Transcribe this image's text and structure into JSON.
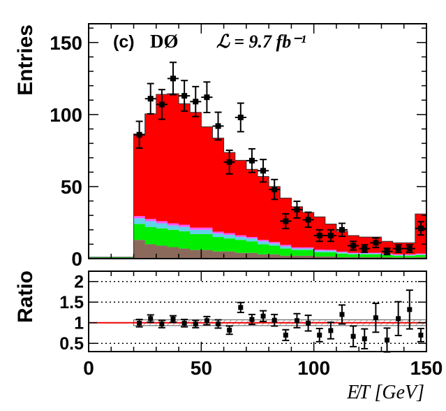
{
  "chart_data": {
    "type": "bar",
    "panel_label": "(c)",
    "experiment": "DØ",
    "luminosity": "ℒ = 9.7 fb⁻¹",
    "xlabel": "E̸T [GeV]",
    "ylabel": "Entries",
    "ratio_ylabel": "Ratio",
    "xlim": [
      0,
      150
    ],
    "ylim": [
      0,
      163
    ],
    "ratio_ylim": [
      0.3,
      2.25
    ],
    "x_ticks": [
      "0",
      "50",
      "100",
      "150"
    ],
    "y_ticks": [
      "0",
      "50",
      "100",
      "150"
    ],
    "ratio_ticks": [
      "0.5",
      "1",
      "1.5",
      "2"
    ],
    "grid": false,
    "bin_edges": [
      0,
      20,
      25,
      30,
      35,
      40,
      45,
      50,
      55,
      60,
      65,
      70,
      75,
      80,
      85,
      90,
      95,
      100,
      105,
      110,
      115,
      120,
      125,
      130,
      135,
      140,
      145,
      150
    ],
    "series": [
      {
        "color": "#8b6a5c",
        "values": [
          0.5,
          13,
          10,
          9,
          8,
          7,
          6,
          6,
          5,
          5,
          4,
          4,
          3,
          3,
          2,
          2,
          2,
          1.5,
          1.5,
          1,
          1,
          1,
          1,
          1,
          0.8,
          0.8,
          1
        ]
      },
      {
        "color": "#00ee00",
        "values": [
          0.5,
          11,
          12,
          12,
          12,
          12,
          11,
          11,
          10,
          9,
          9,
          8,
          7,
          6,
          5,
          4,
          4,
          3,
          3,
          2.5,
          2,
          2,
          2,
          1.5,
          1.2,
          1.2,
          1.5
        ]
      },
      {
        "color": "#5fd3e8",
        "values": [
          0,
          4,
          4,
          3.5,
          3,
          3,
          3,
          3,
          2.5,
          2.5,
          2,
          2,
          2,
          1.5,
          1.5,
          1,
          1,
          1,
          1,
          0.8,
          0.6,
          0.6,
          0.6,
          0.5,
          0.5,
          0.5,
          0.5
        ]
      },
      {
        "color": "#ff55ff",
        "values": [
          0,
          1.5,
          1.5,
          1.5,
          1.5,
          1.5,
          1.5,
          1.5,
          1.2,
          1.2,
          1.2,
          1,
          1,
          1,
          1,
          0.8,
          0.8,
          0.8,
          0.6,
          0.6,
          0.5,
          0.5,
          0.5,
          0.5,
          0.5,
          0.5,
          0.5
        ]
      },
      {
        "color": "#ff0000",
        "values": [
          0,
          57,
          73,
          88,
          90,
          84,
          80,
          70,
          65,
          56,
          52,
          47,
          44,
          38.5,
          32.5,
          28.2,
          24.2,
          22.7,
          17.9,
          14.1,
          11.9,
          10.9,
          10.9,
          8.5,
          8.0,
          8.0,
          27.5
        ]
      }
    ],
    "data_points": {
      "x": [
        22.5,
        27.5,
        32.5,
        37.5,
        42.5,
        47.5,
        52.5,
        57.5,
        62.5,
        67.5,
        72.5,
        77.5,
        82.5,
        87.5,
        92.5,
        97.5,
        102.5,
        107.5,
        112.5,
        117.5,
        122.5,
        127.5,
        132.5,
        137.5,
        142.5,
        147.5
      ],
      "y": [
        86,
        111,
        107,
        125,
        113,
        109,
        112,
        92,
        67,
        98,
        68,
        61,
        48,
        26,
        34,
        27,
        16,
        16,
        20,
        9,
        7,
        11,
        5,
        7,
        7,
        21
      ],
      "yerr": [
        9.3,
        10.5,
        10.3,
        11.2,
        10.6,
        10.4,
        10.6,
        9.6,
        8.2,
        9.9,
        8.2,
        7.8,
        6.9,
        5.1,
        5.8,
        5.2,
        4.0,
        4.0,
        4.5,
        3.0,
        2.6,
        3.3,
        2.2,
        2.6,
        2.6,
        4.6
      ]
    },
    "ratio": {
      "x": [
        22.5,
        27.5,
        32.5,
        37.5,
        42.5,
        47.5,
        52.5,
        57.5,
        62.5,
        67.5,
        72.5,
        77.5,
        82.5,
        87.5,
        92.5,
        97.5,
        102.5,
        107.5,
        112.5,
        117.5,
        122.5,
        127.5,
        132.5,
        137.5,
        142.5,
        147.5
      ],
      "y": [
        0.99,
        1.1,
        0.97,
        1.09,
        0.99,
        0.97,
        1.05,
        0.97,
        0.82,
        1.37,
        1.08,
        1.16,
        1.06,
        0.7,
        1.05,
        0.99,
        0.7,
        0.81,
        1.2,
        0.67,
        0.61,
        1.12,
        0.58,
        1.1,
        1.32,
        0.7
      ],
      "yerr": [
        0.09,
        0.09,
        0.09,
        0.08,
        0.09,
        0.09,
        0.1,
        0.1,
        0.1,
        0.12,
        0.12,
        0.13,
        0.14,
        0.13,
        0.17,
        0.19,
        0.16,
        0.2,
        0.23,
        0.25,
        0.24,
        0.35,
        0.29,
        0.41,
        0.47,
        0.16
      ],
      "band_halfwidth": 0.07,
      "reference_lines": [
        0.5,
        1.5,
        2.0
      ]
    }
  }
}
